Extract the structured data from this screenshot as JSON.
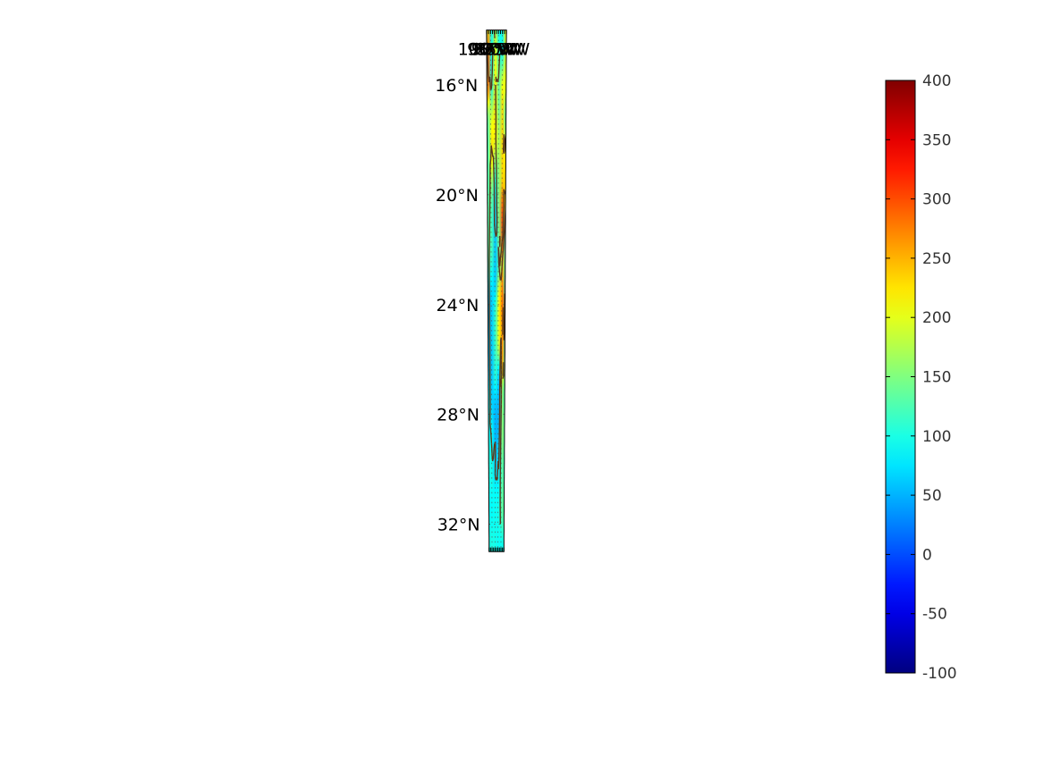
{
  "map": {
    "type": "filled-field-map",
    "region": "Gulf of Mexico and Caribbean",
    "lon_range": [
      -100,
      -75
    ],
    "lat_range": [
      14,
      33
    ],
    "meridian_labels": [
      "100°W",
      "95°W",
      "90°W",
      "85°W",
      "80°W",
      "75°W"
    ],
    "meridian_values": [
      -100,
      -95,
      -90,
      -85,
      -80,
      -75
    ],
    "parallel_labels": [
      "16°N",
      "20°N",
      "24°N",
      "28°N",
      "32°N"
    ],
    "parallel_values": [
      16,
      20,
      24,
      28,
      32
    ],
    "coastline_color": "#5a3a1a",
    "grid": "dotted"
  },
  "colorbar": {
    "colormap": "jet",
    "min": -100,
    "max": 400,
    "ticks": [
      400,
      350,
      300,
      250,
      200,
      150,
      100,
      50,
      0,
      -50,
      -100
    ],
    "tick_labels": [
      "400",
      "350",
      "300",
      "250",
      "200",
      "150",
      "100",
      "50",
      "0",
      "-50",
      "-100"
    ]
  },
  "field": {
    "background_value": 95,
    "blobs": [
      {
        "lon": -99,
        "lat": 15.5,
        "value": 340
      },
      {
        "lon": -98,
        "lat": 15.0,
        "value": 290
      },
      {
        "lon": -78.5,
        "lat": 24.8,
        "value": 290
      },
      {
        "lon": -77.2,
        "lat": 23.6,
        "value": 300
      },
      {
        "lon": -79.5,
        "lat": 25.5,
        "value": 260
      },
      {
        "lon": -79.6,
        "lat": 21.0,
        "value": 320
      },
      {
        "lon": -92.3,
        "lat": 18.6,
        "value": 260
      },
      {
        "lon": -87.6,
        "lat": 17.0,
        "value": 240
      },
      {
        "lon": -81.5,
        "lat": 24.0,
        "value": 240
      },
      {
        "lon": -83.5,
        "lat": 24.5,
        "value": 220
      },
      {
        "lon": -78.5,
        "lat": 18.5,
        "value": 240
      },
      {
        "lon": -79.5,
        "lat": 17.5,
        "value": 240
      },
      {
        "lon": -88.5,
        "lat": 15.8,
        "value": 220
      },
      {
        "lon": -75.5,
        "lat": 19.5,
        "value": 250
      },
      {
        "lon": -75.2,
        "lat": 14.6,
        "value": 230
      },
      {
        "lon": -96.5,
        "lat": 14.6,
        "value": 210
      },
      {
        "lon": -84.0,
        "lat": 19.0,
        "value": 170
      },
      {
        "lon": -86.0,
        "lat": 16.5,
        "value": 165
      },
      {
        "lon": -82.0,
        "lat": 16.5,
        "value": 175
      },
      {
        "lon": -77.5,
        "lat": 28.5,
        "value": 160
      },
      {
        "lon": -78.0,
        "lat": 30.5,
        "value": 140
      },
      {
        "lon": -97.5,
        "lat": 21.0,
        "value": 140
      },
      {
        "lon": -93.0,
        "lat": 20.5,
        "value": 130
      },
      {
        "lon": -89.5,
        "lat": 25.5,
        "value": 115
      },
      {
        "lon": -98.0,
        "lat": 18.0,
        "value": 130
      },
      {
        "lon": -83.0,
        "lat": 21.5,
        "value": 160
      },
      {
        "lon": -89.8,
        "lat": 28.6,
        "value": 45
      },
      {
        "lon": -94.8,
        "lat": 26.2,
        "value": 55
      },
      {
        "lon": -93.5,
        "lat": 25.2,
        "value": 60
      },
      {
        "lon": -85.8,
        "lat": 26.4,
        "value": 55
      },
      {
        "lon": -83.7,
        "lat": 27.5,
        "value": 50
      },
      {
        "lon": -98.6,
        "lat": 25.2,
        "value": 50
      },
      {
        "lon": -89.0,
        "lat": 22.0,
        "value": 55
      },
      {
        "lon": -85.3,
        "lat": 22.2,
        "value": 50
      },
      {
        "lon": -81.2,
        "lat": 29.5,
        "value": 60
      },
      {
        "lon": -91.0,
        "lat": 27.5,
        "value": 75
      }
    ]
  }
}
